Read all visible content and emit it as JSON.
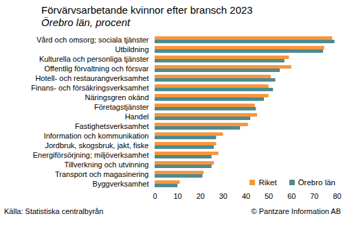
{
  "chart_data": {
    "type": "bar",
    "title": "Förvärvsarbetande kvinnor efter bransch 2023",
    "subtitle": "Örebro län, procent",
    "source": "Källa: Statistiska centralbyrån",
    "copyright": "© Pantzare Information AB",
    "orientation": "horizontal",
    "grid": false,
    "legend": "lower right",
    "categories": [
      "Vård och omsorg; sociala tjänster",
      "Utbildning",
      "Kulturella och personliga tjänster",
      "Offentlig förvaltning och försvar",
      "Hotell- och restaurangverksamhet",
      "Finans- och försäkringsverksamhet",
      "Näringsgren okänd",
      "Företagstjänster",
      "Handel",
      "Fastighetsverksamhet",
      "Information och kommunikation",
      "Jordbruk, skogsbruk, jakt, fiske",
      "Energiförsörjning; miljöverksamhet",
      "Tillverkning och utvinning",
      "Transport och magasinering",
      "Byggverksamhet"
    ],
    "series": [
      {
        "name": "Riket",
        "color": "#f7963c",
        "values": [
          78,
          74.5,
          59,
          60,
          51,
          50,
          50,
          44,
          45,
          41,
          30,
          27,
          28,
          26,
          21.5,
          11
        ]
      },
      {
        "name": "Örebro län",
        "color": "#4e8a8e",
        "values": [
          79,
          74,
          57,
          55,
          53,
          52,
          48,
          44.5,
          42,
          37.5,
          27,
          26,
          25,
          25,
          21,
          10
        ]
      }
    ],
    "xlim": [
      0,
      80
    ],
    "xticks": [
      0,
      10,
      20,
      30,
      40,
      50,
      60,
      70,
      80
    ]
  }
}
